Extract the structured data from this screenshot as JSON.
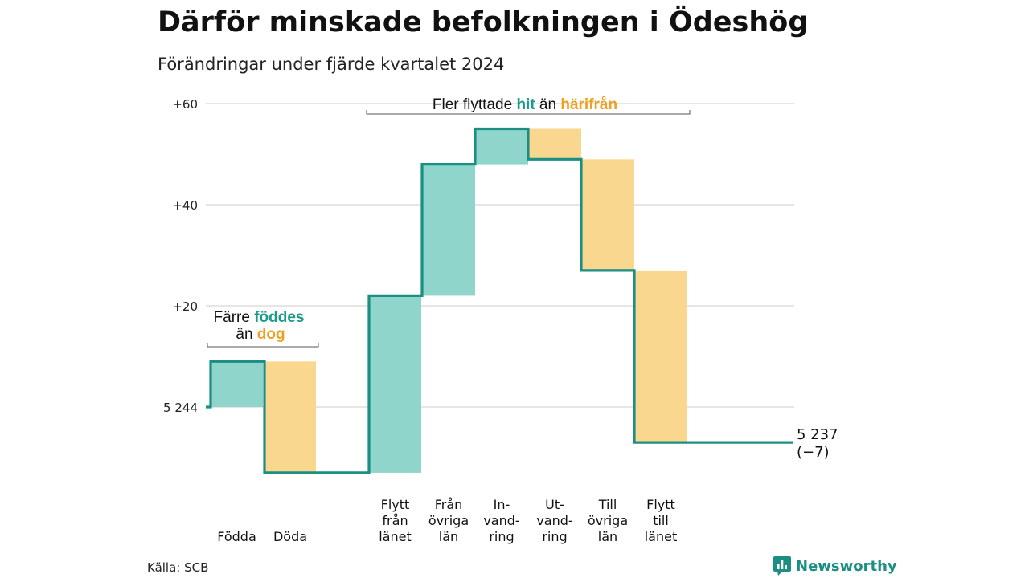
{
  "title": "Därför minskade befolkningen i Ödeshög",
  "subtitle": "Förändringar under fjärde kvartalet 2024",
  "source": "Källa: SCB",
  "brand": "Newsworthy",
  "colors": {
    "increase": "#8fd5cc",
    "decrease": "#fad78f",
    "line": "#1a8f82",
    "highlight_in": "#1a9a8a",
    "highlight_out": "#f0a020",
    "grid": "#dddddd"
  },
  "chart_data": {
    "type": "waterfall",
    "start_value": 5244,
    "end_value": 5237,
    "start_label": "5 244",
    "end_label": "5 237",
    "net_label": "(−7)",
    "yticks": [
      {
        "value": 0,
        "label": "5 244"
      },
      {
        "value": 20,
        "label": "+20"
      },
      {
        "value": 40,
        "label": "+40"
      },
      {
        "value": 60,
        "label": "+60"
      }
    ],
    "ylim": [
      -14,
      62
    ],
    "steps": [
      {
        "lines": [
          "Födda"
        ],
        "delta": 9,
        "kind": "increase"
      },
      {
        "lines": [
          "Döda"
        ],
        "delta": -22,
        "kind": "decrease"
      },
      {
        "lines": [
          "Flytt",
          "från",
          "länet"
        ],
        "delta": 35,
        "kind": "increase"
      },
      {
        "lines": [
          "Från",
          "övriga",
          "län"
        ],
        "delta": 26,
        "kind": "increase"
      },
      {
        "lines": [
          "In-",
          "vand-",
          "ring"
        ],
        "delta": 7,
        "kind": "increase"
      },
      {
        "lines": [
          "Ut-",
          "vand-",
          "ring"
        ],
        "delta": -6,
        "kind": "decrease"
      },
      {
        "lines": [
          "Till",
          "övriga",
          "län"
        ],
        "delta": -22,
        "kind": "decrease"
      },
      {
        "lines": [
          "Flytt",
          "till",
          "länet"
        ],
        "delta": -34,
        "kind": "decrease"
      }
    ],
    "annotations": [
      {
        "line1": [
          "Färre ",
          "föddes"
        ],
        "line2": [
          "än ",
          "dog"
        ]
      },
      {
        "line1": [
          "Fler flyttade ",
          "hit",
          " än ",
          "härifrån"
        ]
      }
    ]
  }
}
